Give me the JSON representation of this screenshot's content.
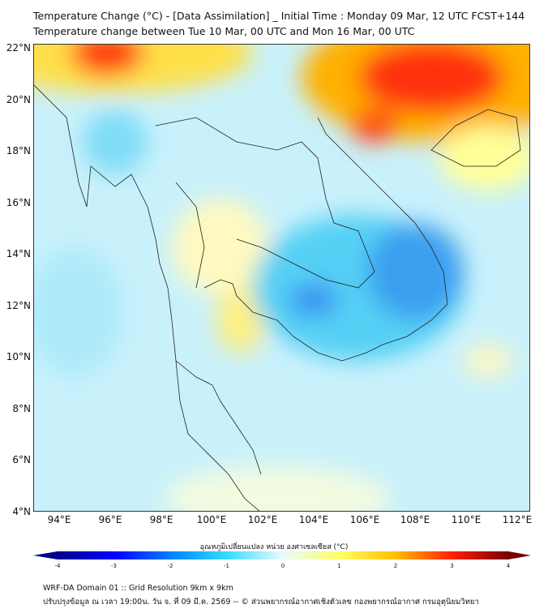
{
  "title": {
    "line1": "Temperature Change (°C) - [Data Assimilation] _ Initial Time : Monday 09 Mar, 12 UTC FCST+144",
    "line2": "Temperature change between Tue 10 Mar, 00 UTC and Mon 16 Mar, 00 UTC"
  },
  "lat_labels": [
    "22°N",
    "20°N",
    "18°N",
    "16°N",
    "14°N",
    "12°N",
    "10°N",
    "8°N",
    "6°N",
    "4°N"
  ],
  "lon_labels": [
    "94°E",
    "96°E",
    "98°E",
    "100°E",
    "102°E",
    "104°E",
    "106°E",
    "108°E",
    "110°E",
    "112°E"
  ],
  "colorbar": {
    "title": "อุณหภูมิเปลี่ยนแปลง หน่วย องศาเซลเซียส (°C)",
    "ticks": [
      "-4",
      "-3",
      "-2",
      "-1",
      "0",
      "1",
      "2",
      "3",
      "4"
    ],
    "range": [
      -4,
      4
    ],
    "colors": [
      "#00008b",
      "#0000ff",
      "#0080ff",
      "#33ddff",
      "#eafaff",
      "#ffff66",
      "#ffc000",
      "#ff2000",
      "#7a0000"
    ]
  },
  "footer": {
    "line1": "WRF-DA Domain 01 :: Grid Resolution 9km x 9km",
    "line2": "ปรับปรุงข้อมูล ณ เวลา 19:00น. วัน จ. ที่ 09 มี.ค. 2569 -- © ส่วนพยากรณ์อากาศเชิงตัวเลข กองพยากรณ์อากาศ กรมอุตุนิยมวิทยา"
  }
}
